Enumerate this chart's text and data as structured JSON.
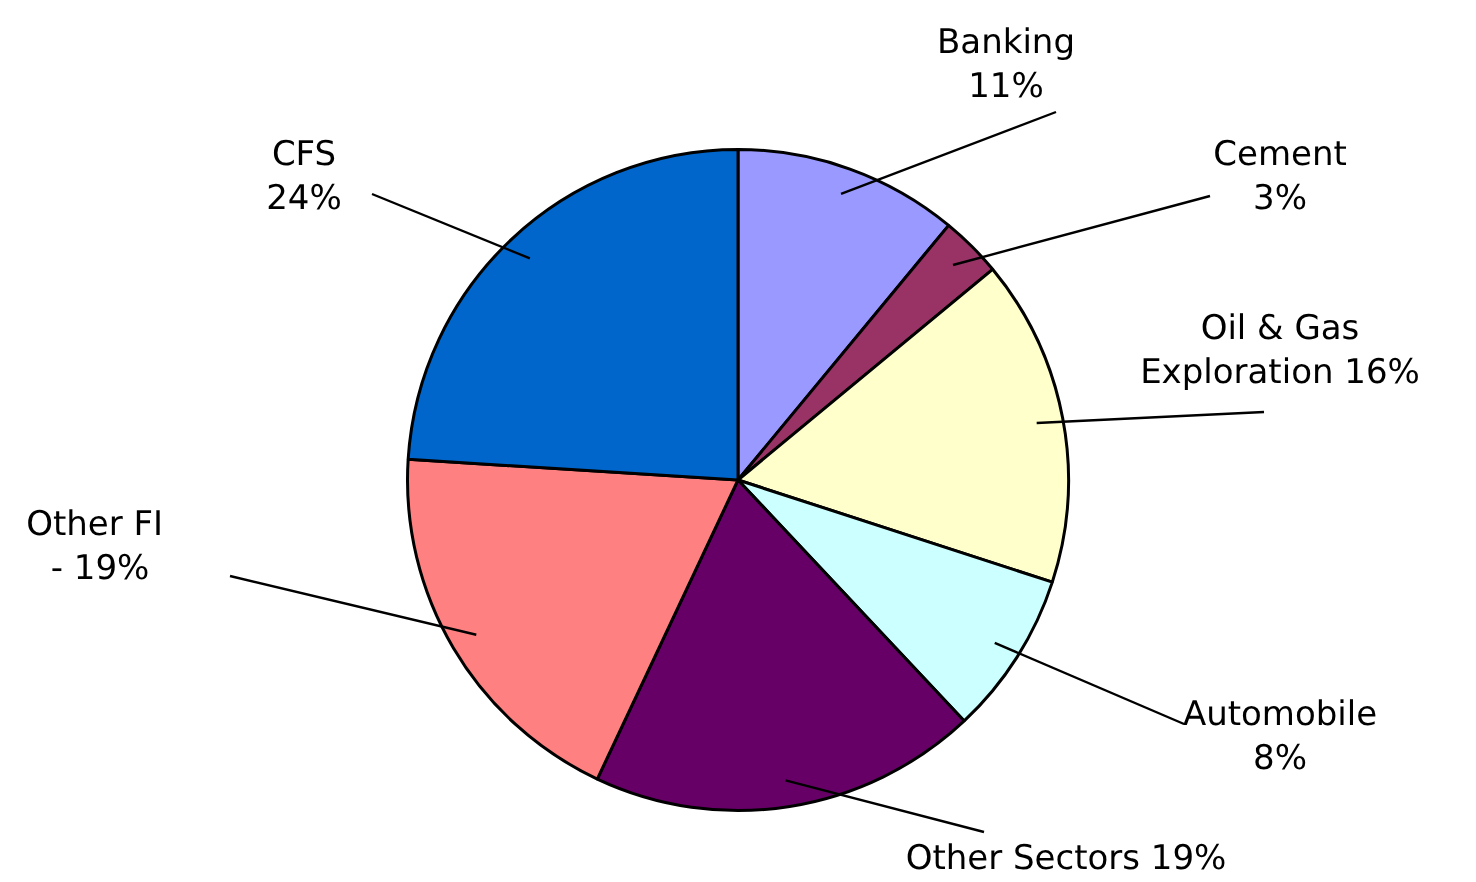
{
  "chart_data": {
    "type": "pie",
    "categories": [
      "Banking",
      "Cement",
      "Oil & Gas Exploration",
      "Automobile",
      "Other Sectors",
      "Other FI  -",
      "CFS"
    ],
    "values": [
      11,
      3,
      16,
      8,
      19,
      19,
      24
    ],
    "value_labels": [
      "11%",
      "3%",
      "16%",
      "8%",
      "19%",
      "19%",
      "24%"
    ],
    "colors": [
      "#9999ff",
      "#993366",
      "#ffffcc",
      "#ccffff",
      "#660066",
      "#ff8080",
      "#0066cc"
    ],
    "legend": false
  }
}
